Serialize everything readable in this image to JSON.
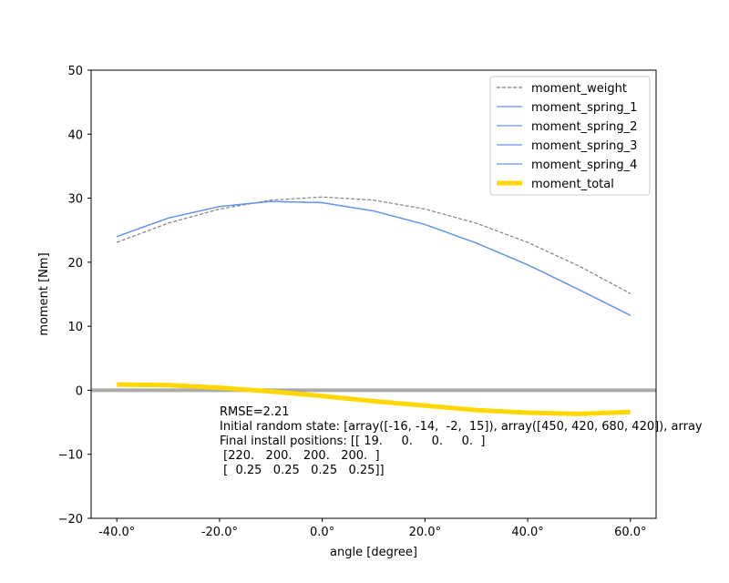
{
  "chart_data": {
    "type": "line",
    "xlabel": "angle [degree]",
    "ylabel": "moment [Nm]",
    "xlim": [
      -45,
      65
    ],
    "ylim": [
      -20,
      50
    ],
    "xticks": [
      -40,
      -20,
      0,
      20,
      40,
      60
    ],
    "xtick_labels": [
      "-40.0°",
      "-20.0°",
      "0.0°",
      "20.0°",
      "40.0°",
      "60.0°"
    ],
    "yticks": [
      -20,
      -10,
      0,
      10,
      20,
      30,
      40,
      50
    ],
    "ytick_labels": [
      "−20",
      "−10",
      "0",
      "10",
      "20",
      "30",
      "40",
      "50"
    ],
    "grid": false,
    "legend_position": "top-right",
    "zero_line": {
      "y": 0,
      "color": "#aaaaaa"
    },
    "series": [
      {
        "name": "moment_weight",
        "color": "#808080",
        "style": "dashed",
        "x": [
          -40,
          -30,
          -20,
          -10,
          0,
          10,
          20,
          30,
          40,
          50,
          60
        ],
        "y": [
          23.1,
          26.1,
          28.3,
          29.7,
          30.2,
          29.7,
          28.3,
          26.1,
          23.1,
          19.4,
          15.1
        ]
      },
      {
        "name": "moment_spring_1",
        "color": "#6495ed",
        "style": "solid",
        "x": [
          -40,
          -30,
          -20,
          -10,
          0,
          10,
          20,
          30,
          40,
          50,
          60
        ],
        "y": [
          24.0,
          26.9,
          28.7,
          29.5,
          29.3,
          28.0,
          25.9,
          23.0,
          19.6,
          15.7,
          11.7
        ]
      },
      {
        "name": "moment_spring_2",
        "color": "#6495ed",
        "style": "solid",
        "x": [
          -40,
          -30,
          -20,
          -10,
          0,
          10,
          20,
          30,
          40,
          50,
          60
        ],
        "y": [
          24.0,
          26.9,
          28.7,
          29.5,
          29.3,
          28.0,
          25.9,
          23.0,
          19.6,
          15.7,
          11.7
        ]
      },
      {
        "name": "moment_spring_3",
        "color": "#6495ed",
        "style": "solid",
        "x": [
          -40,
          -30,
          -20,
          -10,
          0,
          10,
          20,
          30,
          40,
          50,
          60
        ],
        "y": [
          24.0,
          26.9,
          28.7,
          29.5,
          29.3,
          28.0,
          25.9,
          23.0,
          19.6,
          15.7,
          11.7
        ]
      },
      {
        "name": "moment_spring_4",
        "color": "#6495ed",
        "style": "solid",
        "x": [
          -40,
          -30,
          -20,
          -10,
          0,
          10,
          20,
          30,
          40,
          50,
          60
        ],
        "y": [
          24.0,
          26.9,
          28.7,
          29.5,
          29.3,
          28.0,
          25.9,
          23.0,
          19.6,
          15.7,
          11.7
        ]
      },
      {
        "name": "moment_total",
        "color": "#ffd700",
        "style": "thick",
        "x": [
          -40,
          -30,
          -20,
          -10,
          0,
          10,
          20,
          30,
          40,
          50,
          60
        ],
        "y": [
          0.9,
          0.8,
          0.4,
          -0.2,
          -0.9,
          -1.7,
          -2.4,
          -3.1,
          -3.5,
          -3.7,
          -3.4
        ]
      }
    ],
    "annotations": [
      "RMSE=2.21",
      "Initial random state: [array([-16, -14,  -2,  15]), array([450, 420, 680, 420]), array",
      "Final install positions: [[ 19.     0.     0.     0.  ]",
      " [220.   200.   200.   200.  ]",
      " [  0.25   0.25   0.25   0.25]]"
    ]
  }
}
